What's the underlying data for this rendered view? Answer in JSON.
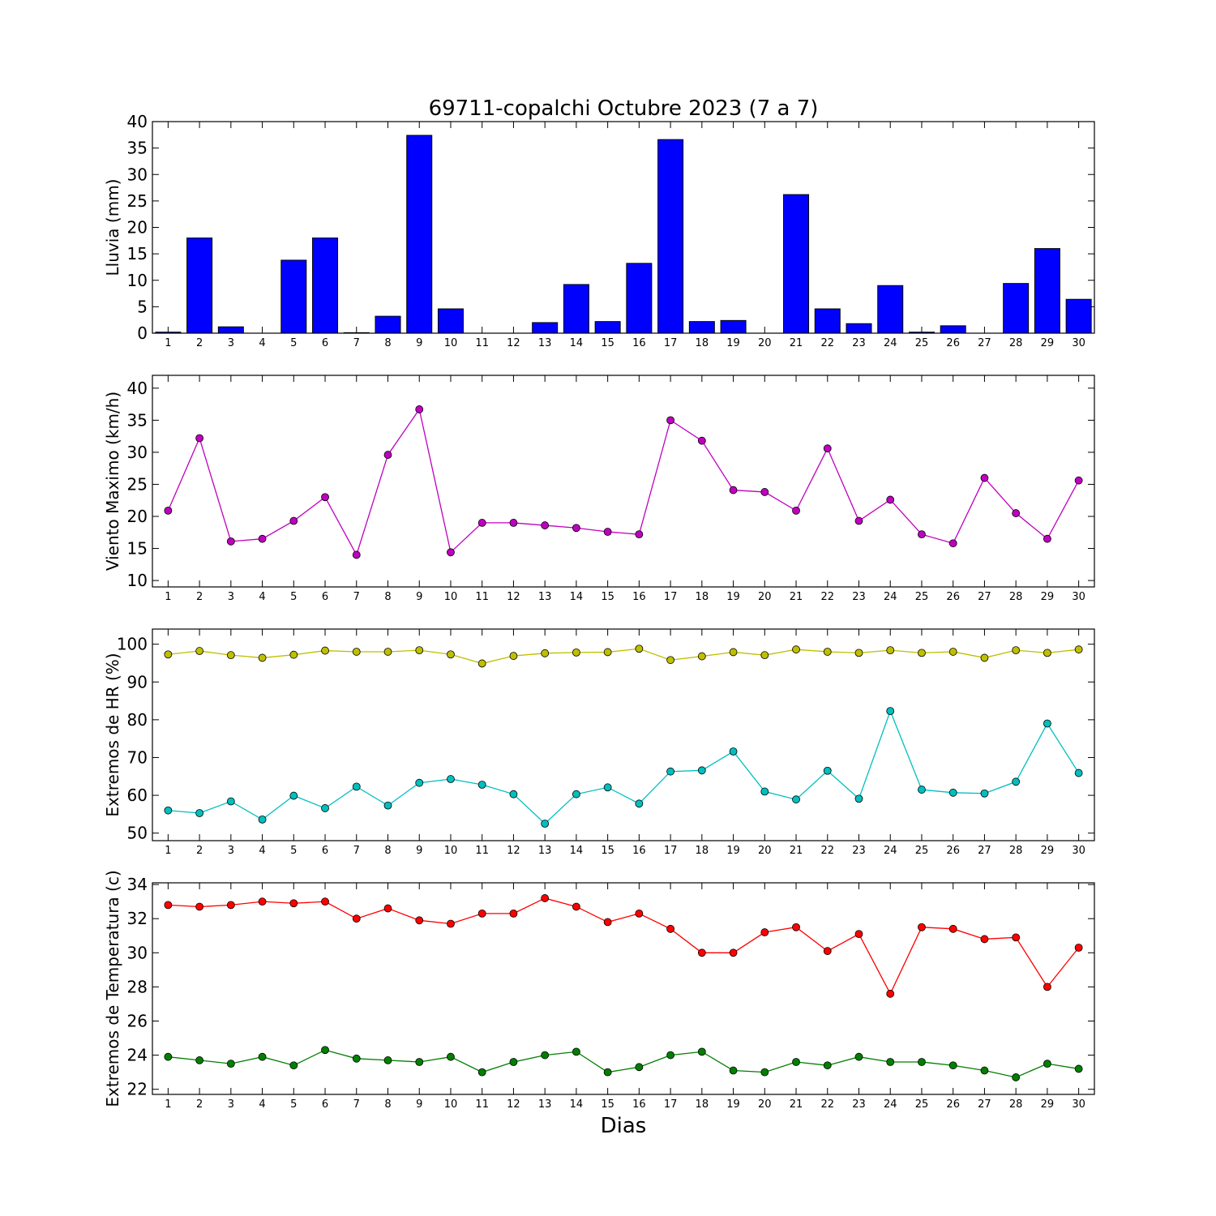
{
  "title": "69711-copalchi Octubre 2023  (7 a 7)",
  "xlabel": "Dias",
  "chart_data": [
    {
      "type": "bar",
      "ylabel": "Lluvia (mm)",
      "color": "#0000ff",
      "ylim": [
        0,
        40
      ],
      "yticks": [
        0,
        5,
        10,
        15,
        20,
        25,
        30,
        35,
        40
      ],
      "x": [
        1,
        2,
        3,
        4,
        5,
        6,
        7,
        8,
        9,
        10,
        11,
        12,
        13,
        14,
        15,
        16,
        17,
        18,
        19,
        20,
        21,
        22,
        23,
        24,
        25,
        26,
        27,
        28,
        29,
        30
      ],
      "values": [
        0.2,
        18.0,
        1.2,
        0,
        13.8,
        18.0,
        0.1,
        3.2,
        37.4,
        4.6,
        0,
        0,
        2.0,
        9.2,
        2.2,
        13.2,
        36.6,
        2.2,
        2.4,
        0,
        26.2,
        4.6,
        1.8,
        9.0,
        0.2,
        1.4,
        0,
        9.4,
        16.0,
        6.4
      ]
    },
    {
      "type": "line",
      "ylabel": "Viento Maximo (km/h)",
      "ylim": [
        9,
        42
      ],
      "yticks": [
        10,
        15,
        20,
        25,
        30,
        35,
        40
      ],
      "x": [
        1,
        2,
        3,
        4,
        5,
        6,
        7,
        8,
        9,
        10,
        11,
        12,
        13,
        14,
        15,
        16,
        17,
        18,
        19,
        20,
        21,
        22,
        23,
        24,
        25,
        26,
        27,
        28,
        29,
        30
      ],
      "series": [
        {
          "color": "#bf00bf",
          "values": [
            20.9,
            32.2,
            16.1,
            16.5,
            19.3,
            23.0,
            14.0,
            29.6,
            36.7,
            14.4,
            19.0,
            19.0,
            18.6,
            18.2,
            17.6,
            17.2,
            35.0,
            31.8,
            24.1,
            23.8,
            20.9,
            30.6,
            19.3,
            22.6,
            17.2,
            15.8,
            26.0,
            20.5,
            16.5,
            25.6
          ]
        }
      ]
    },
    {
      "type": "line",
      "ylabel": "Extremos de HR (%)",
      "ylim": [
        48,
        104
      ],
      "yticks": [
        50,
        60,
        70,
        80,
        90,
        100
      ],
      "x": [
        1,
        2,
        3,
        4,
        5,
        6,
        7,
        8,
        9,
        10,
        11,
        12,
        13,
        14,
        15,
        16,
        17,
        18,
        19,
        20,
        21,
        22,
        23,
        24,
        25,
        26,
        27,
        28,
        29,
        30
      ],
      "series": [
        {
          "color": "#bfbf00",
          "values": [
            97.3,
            98.2,
            97.1,
            96.4,
            97.2,
            98.3,
            98.0,
            98.0,
            98.4,
            97.3,
            94.9,
            96.9,
            97.6,
            97.8,
            97.9,
            98.8,
            95.8,
            96.8,
            97.9,
            97.1,
            98.6,
            98.0,
            97.7,
            98.4,
            97.7,
            98.0,
            96.4,
            98.4,
            97.7,
            98.6
          ]
        },
        {
          "color": "#00bfbf",
          "values": [
            56.0,
            55.3,
            58.4,
            53.6,
            59.9,
            56.6,
            62.3,
            57.3,
            63.3,
            64.3,
            62.8,
            60.3,
            52.5,
            60.3,
            62.1,
            57.8,
            66.3,
            66.6,
            71.6,
            61.0,
            58.9,
            66.5,
            59.1,
            82.3,
            61.5,
            60.7,
            60.5,
            63.6,
            79.0,
            65.9
          ]
        }
      ]
    },
    {
      "type": "line",
      "ylabel": "Extremos de Temperatura (c)",
      "ylim": [
        21.7,
        34.1
      ],
      "yticks": [
        22,
        24,
        26,
        28,
        30,
        32,
        34
      ],
      "x": [
        1,
        2,
        3,
        4,
        5,
        6,
        7,
        8,
        9,
        10,
        11,
        12,
        13,
        14,
        15,
        16,
        17,
        18,
        19,
        20,
        21,
        22,
        23,
        24,
        25,
        26,
        27,
        28,
        29,
        30
      ],
      "series": [
        {
          "color": "#ff0000",
          "values": [
            32.8,
            32.7,
            32.8,
            33.0,
            32.9,
            33.0,
            32.0,
            32.6,
            31.9,
            31.7,
            32.3,
            32.3,
            33.2,
            32.7,
            31.8,
            32.3,
            31.4,
            30.0,
            30.0,
            31.2,
            31.5,
            30.1,
            31.1,
            27.6,
            31.5,
            31.4,
            30.8,
            30.9,
            28.0,
            30.3
          ]
        },
        {
          "color": "#007f00",
          "values": [
            23.9,
            23.7,
            23.5,
            23.9,
            23.4,
            24.3,
            23.8,
            23.7,
            23.6,
            23.9,
            23.0,
            23.6,
            24.0,
            24.2,
            23.0,
            23.3,
            24.0,
            24.2,
            23.1,
            23.0,
            23.6,
            23.4,
            23.9,
            23.6,
            23.6,
            23.4,
            23.1,
            22.7,
            23.5,
            23.2
          ]
        }
      ]
    }
  ]
}
